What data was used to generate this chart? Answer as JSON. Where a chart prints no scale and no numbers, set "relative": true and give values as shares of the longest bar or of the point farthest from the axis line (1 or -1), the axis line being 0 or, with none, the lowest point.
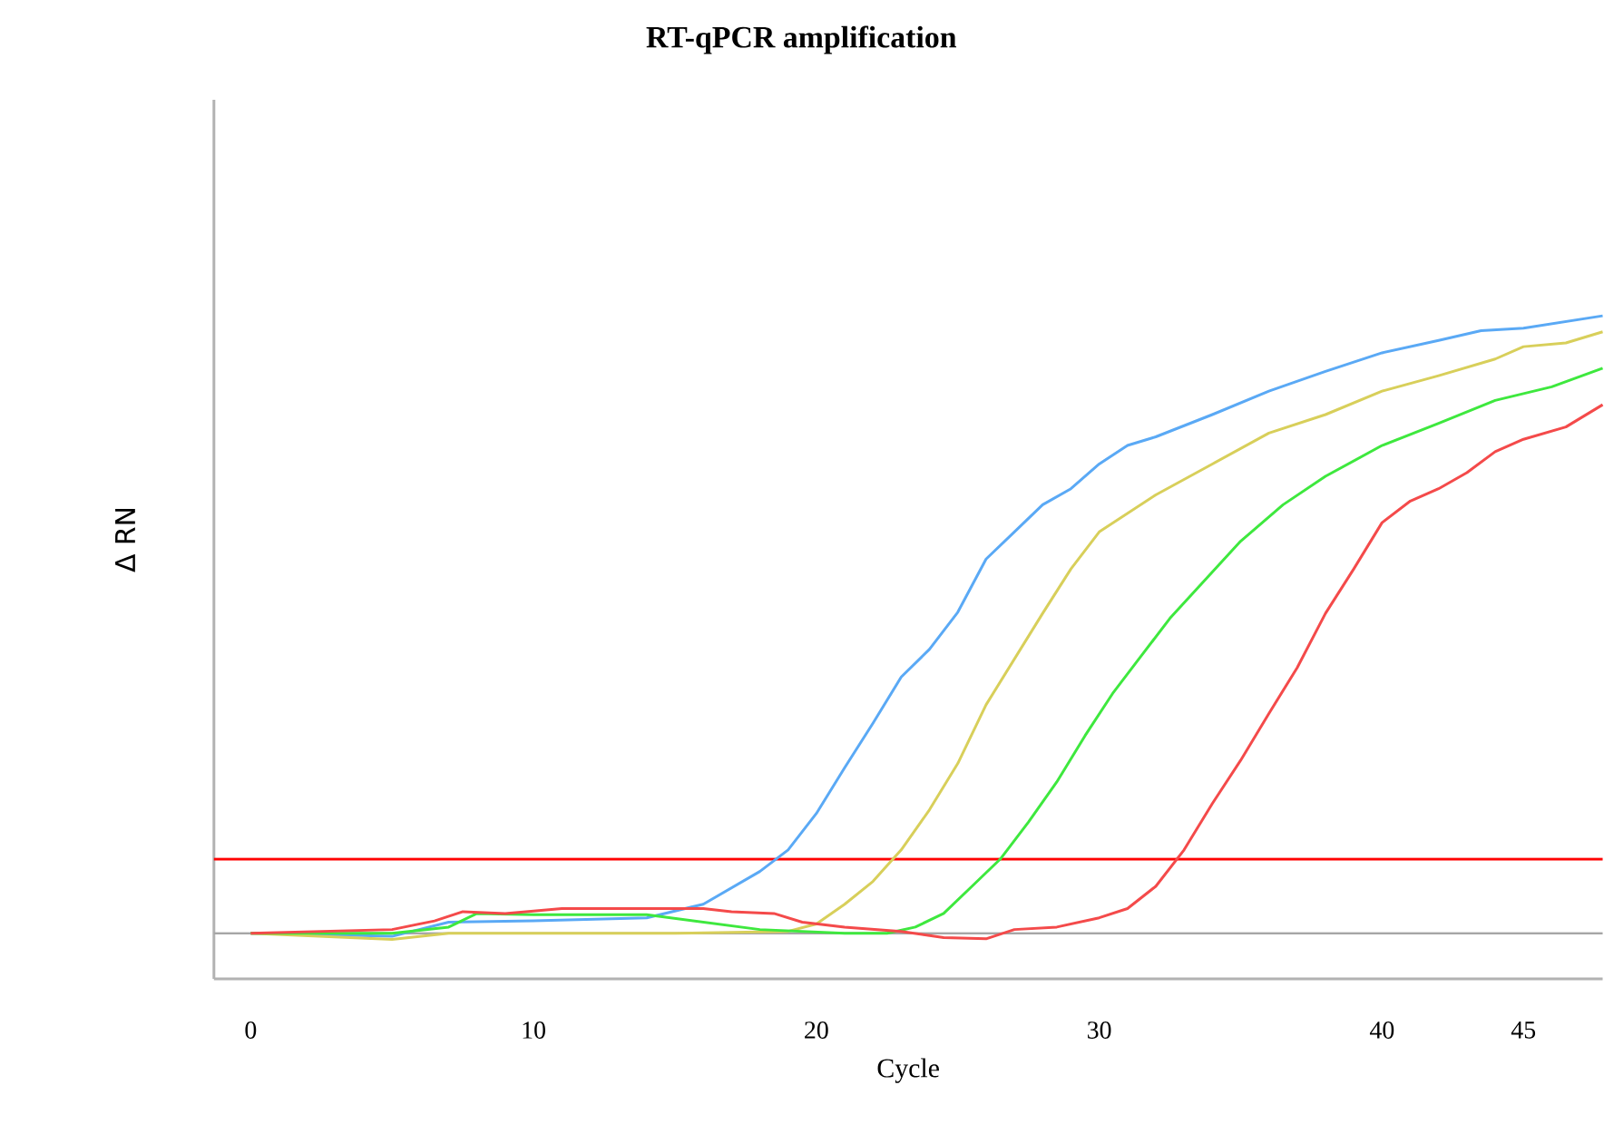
{
  "chart_data": {
    "type": "line",
    "title": "RT-qPCR amplification",
    "xlabel": "Cycle",
    "ylabel": "Δ RN",
    "relative": true,
    "xlim": [
      -1.3,
      47.8
    ],
    "xticks": [
      0,
      10,
      20,
      30,
      40,
      45
    ],
    "line_style": "solid",
    "marker": "none",
    "ref_lines": [
      {
        "axis": "y",
        "value": 0.12,
        "color": "#ff0000"
      }
    ],
    "series": [
      {
        "color": "#5aa9f5",
        "x": [
          0,
          5,
          7,
          10,
          14,
          16,
          18,
          19,
          20,
          21,
          22,
          23,
          24,
          25,
          26,
          27,
          28,
          29,
          30,
          31,
          32,
          34,
          36,
          38,
          40,
          42,
          43.5,
          45,
          47.8
        ],
        "values": [
          0,
          -0.005,
          0.018,
          0.02,
          0.025,
          0.047,
          0.1,
          0.135,
          0.194,
          0.268,
          0.34,
          0.415,
          0.46,
          0.52,
          0.606,
          0.65,
          0.694,
          0.72,
          0.76,
          0.79,
          0.804,
          0.84,
          0.878,
          0.91,
          0.94,
          0.96,
          0.976,
          0.98,
          1
        ]
      },
      {
        "color": "#d8cf5a",
        "x": [
          0,
          5,
          7,
          10,
          15,
          19,
          20,
          21,
          22,
          23,
          24,
          25,
          26,
          27,
          28,
          29,
          30,
          31,
          32,
          34,
          36,
          38,
          40,
          42,
          44,
          45,
          46.5,
          47.8
        ],
        "values": [
          0,
          -0.01,
          0,
          0,
          0,
          0.003,
          0.015,
          0.047,
          0.084,
          0.135,
          0.2,
          0.275,
          0.37,
          0.444,
          0.518,
          0.59,
          0.65,
          0.68,
          0.71,
          0.76,
          0.81,
          0.84,
          0.878,
          0.903,
          0.93,
          0.95,
          0.956,
          0.974
        ]
      },
      {
        "color": "#3ee83e",
        "x": [
          0,
          5,
          7,
          8,
          10,
          14,
          16,
          18,
          21,
          22.5,
          23.5,
          24.5,
          25.5,
          26.5,
          27.5,
          28.5,
          29.5,
          30.5,
          31.5,
          32.5,
          33.5,
          35,
          36.5,
          38,
          40,
          42,
          44,
          46,
          47.8
        ],
        "values": [
          0,
          0,
          0.01,
          0.032,
          0.03,
          0.03,
          0.018,
          0.006,
          0,
          0,
          0.01,
          0.032,
          0.076,
          0.12,
          0.18,
          0.245,
          0.32,
          0.39,
          0.45,
          0.51,
          0.56,
          0.635,
          0.694,
          0.74,
          0.79,
          0.826,
          0.863,
          0.885,
          0.915
        ]
      },
      {
        "color": "#f44a4a",
        "x": [
          0,
          5,
          6.5,
          7.5,
          9,
          11,
          14,
          16,
          17,
          18.5,
          19.5,
          21,
          23,
          24.5,
          26,
          27,
          28.5,
          30,
          31,
          32,
          33,
          34,
          35,
          36,
          37,
          38,
          39,
          40,
          41,
          42,
          43,
          44,
          45,
          46.5,
          47.8
        ],
        "values": [
          0,
          0.006,
          0.02,
          0.035,
          0.032,
          0.04,
          0.04,
          0.04,
          0.035,
          0.032,
          0.018,
          0.01,
          0.003,
          -0.007,
          -0.009,
          0.006,
          0.01,
          0.025,
          0.04,
          0.076,
          0.135,
          0.21,
          0.28,
          0.356,
          0.43,
          0.518,
          0.59,
          0.665,
          0.7,
          0.72,
          0.746,
          0.78,
          0.8,
          0.82,
          0.856
        ]
      }
    ]
  }
}
